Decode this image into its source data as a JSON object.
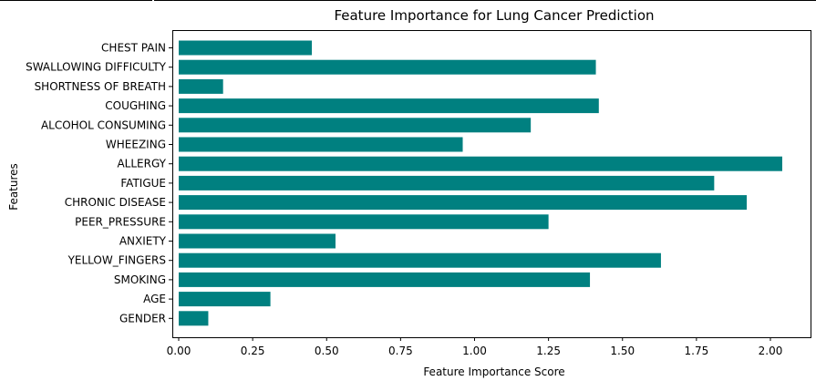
{
  "chart_data": {
    "type": "bar",
    "orientation": "horizontal",
    "title": "Feature Importance for Lung Cancer Prediction",
    "xlabel": "Feature Importance Score",
    "ylabel": "Features",
    "categories": [
      "CHEST PAIN",
      "SWALLOWING DIFFICULTY",
      "SHORTNESS OF BREATH",
      "COUGHING",
      "ALCOHOL CONSUMING",
      "WHEEZING",
      "ALLERGY",
      "FATIGUE",
      "CHRONIC DISEASE",
      "PEER_PRESSURE",
      "ANXIETY",
      "YELLOW_FINGERS",
      "SMOKING",
      "AGE",
      "GENDER"
    ],
    "values": [
      0.45,
      1.41,
      0.15,
      1.42,
      1.19,
      0.96,
      2.04,
      1.81,
      1.92,
      1.25,
      0.53,
      1.63,
      1.39,
      0.31,
      0.1
    ],
    "xlim": [
      -0.0245,
      2.1
    ],
    "xticks": [
      "0.00",
      "0.25",
      "0.50",
      "0.75",
      "1.00",
      "1.25",
      "1.50",
      "1.75",
      "2.00"
    ],
    "bar_color": "#008080",
    "grid": false
  }
}
